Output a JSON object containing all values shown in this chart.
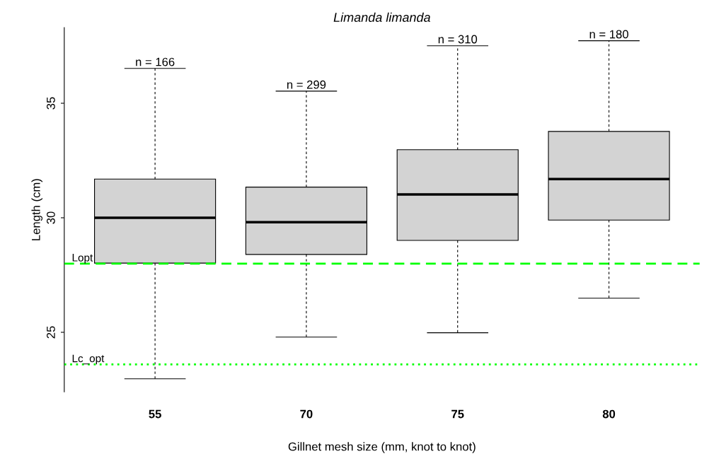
{
  "chart_data": {
    "type": "box",
    "title": "Limanda limanda",
    "xlabel": "Gillnet mesh size (mm, knot to knot)",
    "ylabel": "Length (cm)",
    "categories": [
      "55",
      "70",
      "75",
      "80"
    ],
    "color": "#d3d3d3",
    "boxes": [
      {
        "low": 22.97,
        "q1": 28.02,
        "median": 30.0,
        "q3": 31.69,
        "high": 36.52
      },
      {
        "low": 24.79,
        "q1": 28.4,
        "median": 29.81,
        "q3": 31.34,
        "high": 35.53
      },
      {
        "low": 24.98,
        "q1": 29.01,
        "median": 31.02,
        "q3": 32.97,
        "high": 37.51
      },
      {
        "low": 26.49,
        "q1": 29.9,
        "median": 31.69,
        "q3": 33.77,
        "high": 37.73
      }
    ],
    "ylim": [
      22.4,
      38.3
    ],
    "yticks": [
      25,
      30,
      35
    ],
    "grid": false,
    "legend": false,
    "ref_lines": [
      {
        "axis": "y",
        "value": 28.0,
        "label": "Lopt",
        "color": "#00ff00",
        "line_style": "dashed"
      },
      {
        "axis": "y",
        "value": 23.6,
        "label": "Lc_opt",
        "color": "#00ff00",
        "line_style": "dotted"
      }
    ],
    "annotations": [
      {
        "text": "n = 166",
        "x": "55",
        "y": 36.52
      },
      {
        "text": "n = 299",
        "x": "70",
        "y": 35.53
      },
      {
        "text": "n = 310",
        "x": "75",
        "y": 37.51
      },
      {
        "text": "n = 180",
        "x": "80",
        "y": 37.73
      }
    ]
  }
}
